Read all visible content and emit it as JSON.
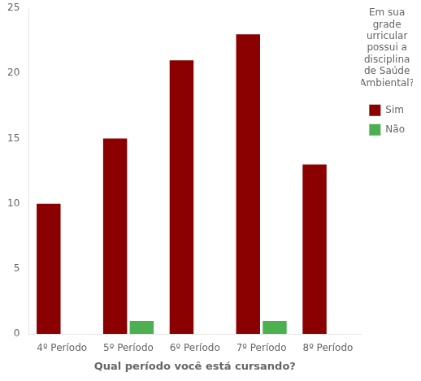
{
  "chart_data": {
    "type": "bar",
    "xlabel": "Qual período você está cursando?",
    "categories": [
      "4º Período",
      "5º Período",
      "6º Período",
      "7º Período",
      "8º Período"
    ],
    "series": [
      {
        "name": "Sim",
        "color": "#8B0000",
        "values": [
          10,
          15,
          21,
          23,
          13
        ]
      },
      {
        "name": "Não",
        "color": "#4CAF50",
        "values": [
          0,
          1,
          0,
          1,
          0
        ]
      }
    ],
    "legend_title": "Em sua\ngrade\nurricular\npossui a\ndisciplina\nde Saúde\nAmbiental?",
    "legend": "right",
    "ylim": [
      0,
      25
    ],
    "yticks": [
      0,
      5,
      10,
      15,
      20,
      25
    ],
    "grid": false
  }
}
